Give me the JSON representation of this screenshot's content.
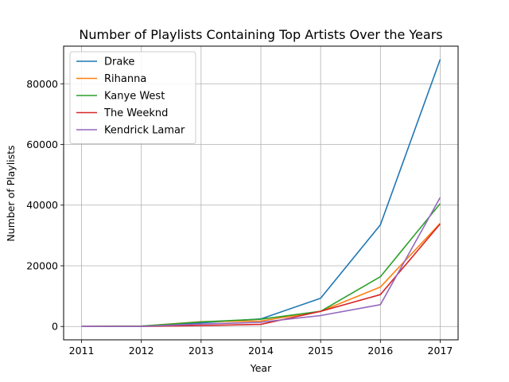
{
  "chart_data": {
    "type": "line",
    "title": "Number of Playlists Containing Top Artists Over the Years",
    "xlabel": "Year",
    "ylabel": "Number of Playlists",
    "x": [
      2011,
      2012,
      2013,
      2014,
      2015,
      2016,
      2017
    ],
    "xlim": [
      2010.7,
      2017.3
    ],
    "ylim": [
      -4400,
      92400
    ],
    "yticks": [
      0,
      20000,
      40000,
      60000,
      80000
    ],
    "grid": true,
    "legend_position": "top-left",
    "series": [
      {
        "name": "Drake",
        "color": "#1f77b4",
        "values": [
          0,
          100,
          1200,
          2500,
          9300,
          33500,
          88000
        ]
      },
      {
        "name": "Rihanna",
        "color": "#ff7f0e",
        "values": [
          0,
          100,
          1600,
          1800,
          5000,
          13000,
          34000
        ]
      },
      {
        "name": "Kanye West",
        "color": "#2ca02c",
        "values": [
          0,
          100,
          1500,
          2400,
          5000,
          16400,
          40500
        ]
      },
      {
        "name": "The Weeknd",
        "color": "#d62728",
        "values": [
          0,
          0,
          300,
          700,
          5000,
          10500,
          33800
        ]
      },
      {
        "name": "Kendrick Lamar",
        "color": "#9467bd",
        "values": [
          0,
          0,
          800,
          1400,
          3600,
          7200,
          42500
        ]
      }
    ]
  }
}
